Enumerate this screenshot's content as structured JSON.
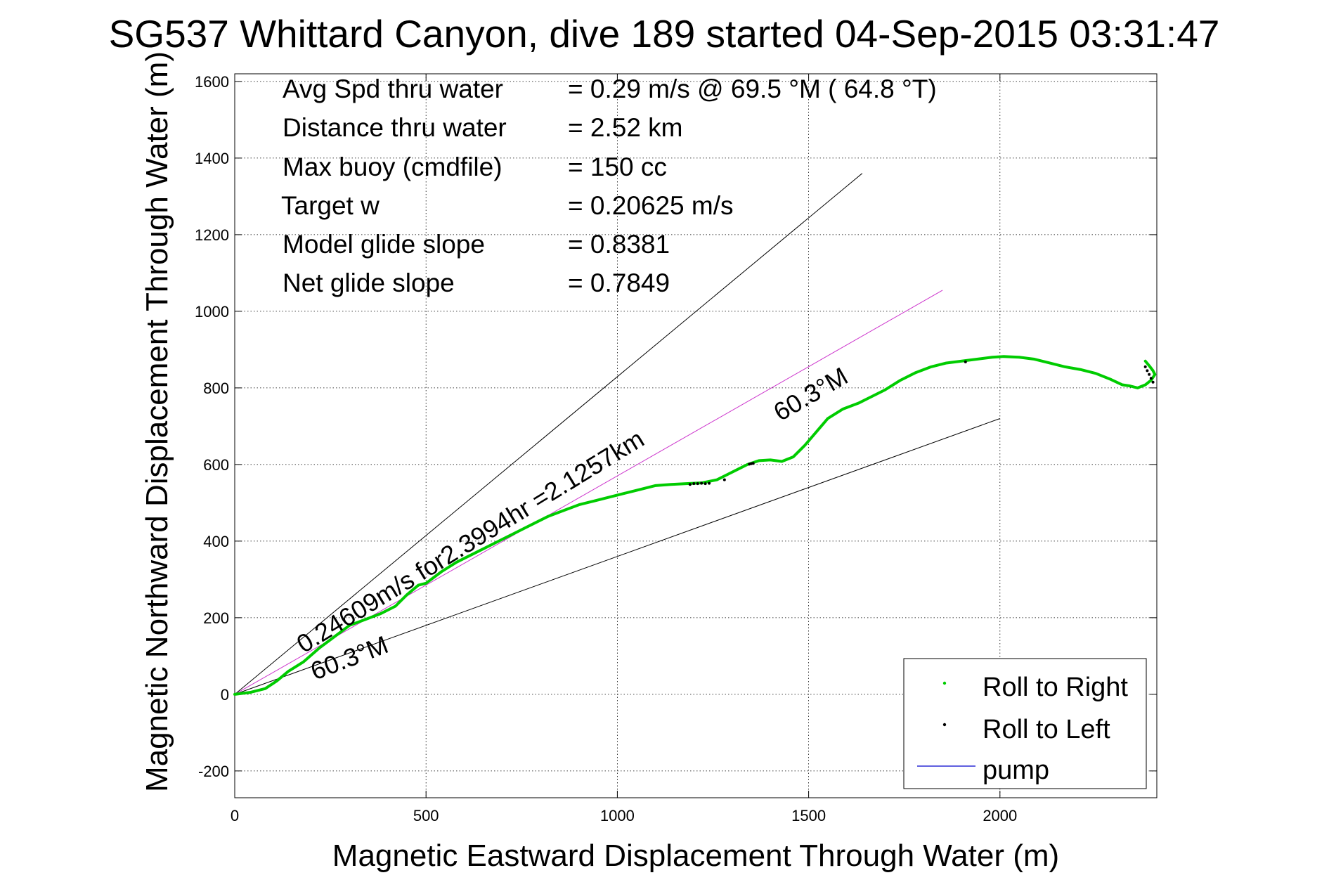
{
  "chart_data": {
    "type": "line",
    "title": "SG537 Whittard Canyon, dive 189 started 04-Sep-2015 03:31:47",
    "xlabel": "Magnetic Eastward Displacement Through Water (m)",
    "ylabel": "Magnetic Northward Displacement Through Water (m)",
    "xlim": [
      0,
      2410
    ],
    "ylim": [
      -270,
      1620
    ],
    "x_ticks": [
      0,
      500,
      1000,
      1500,
      2000
    ],
    "y_ticks": [
      -200,
      0,
      200,
      400,
      600,
      800,
      1000,
      1200,
      1400,
      1600
    ],
    "x_tick_labels": [
      "0",
      "500",
      "1000",
      "1500",
      "2000"
    ],
    "y_tick_labels": [
      "-200",
      "0",
      "200",
      "400",
      "600",
      "800",
      "1000",
      "1200",
      "1400",
      "1600"
    ],
    "grid": true,
    "legend_position": "bottom-right",
    "stats": [
      {
        "label": "Avg Spd thru water",
        "value": "=  0.29 m/s @  69.5 °M ( 64.8 °T)"
      },
      {
        "label": "Distance thru water",
        "value": "=  2.52 km"
      },
      {
        "label": "Max buoy (cmdfile)",
        "value": "= 150 cc"
      },
      {
        "label": "Target w",
        "value": "= 0.20625 m/s"
      },
      {
        "label": "Model glide slope",
        "value": "= 0.8381"
      },
      {
        "label": "Net glide slope",
        "value": "= 0.7849"
      }
    ],
    "annotations": {
      "speed_text": "0.24609m/s for2.3994hr =2.1257km",
      "heading_lower": "60.3°M",
      "heading_upper": "60.3°M"
    },
    "reference_lines": [
      {
        "style": "black",
        "x": [
          0,
          1640
        ],
        "y": [
          0,
          1360
        ]
      },
      {
        "style": "black",
        "x": [
          0,
          2000
        ],
        "y": [
          0,
          720
        ]
      },
      {
        "style": "magenta",
        "x": [
          0,
          1850
        ],
        "y": [
          0,
          1055
        ]
      }
    ],
    "series": [
      {
        "name": "Roll to Right",
        "color": "#00cc00",
        "x": [
          0,
          40,
          80,
          110,
          140,
          180,
          220,
          260,
          300,
          340,
          380,
          420,
          450,
          480,
          500,
          540,
          580,
          620,
          660,
          700,
          740,
          780,
          820,
          860,
          900,
          940,
          980,
          1020,
          1060,
          1100,
          1140,
          1180,
          1220,
          1260,
          1290,
          1320,
          1340,
          1370,
          1400,
          1430,
          1460,
          1490,
          1520,
          1550,
          1590,
          1630,
          1660,
          1700,
          1740,
          1780,
          1820,
          1860,
          1900,
          1940,
          1980,
          2010,
          2050,
          2090,
          2130,
          2170,
          2210,
          2250,
          2290,
          2320,
          2340,
          2360,
          2380,
          2395,
          2405,
          2400,
          2390,
          2380
        ],
        "y": [
          0,
          5,
          15,
          35,
          60,
          85,
          120,
          150,
          180,
          195,
          210,
          230,
          260,
          285,
          290,
          320,
          345,
          365,
          385,
          405,
          425,
          445,
          465,
          480,
          495,
          505,
          515,
          525,
          535,
          545,
          548,
          550,
          552,
          560,
          575,
          590,
          600,
          610,
          612,
          608,
          620,
          650,
          685,
          720,
          745,
          760,
          775,
          795,
          820,
          840,
          855,
          865,
          870,
          875,
          880,
          882,
          880,
          875,
          865,
          855,
          848,
          838,
          822,
          808,
          805,
          800,
          808,
          820,
          835,
          845,
          858,
          870
        ]
      },
      {
        "name": "Roll to Left",
        "color": "#000000",
        "x": [
          1190,
          1200,
          1210,
          1220,
          1230,
          1240,
          1280,
          1345,
          1350,
          1355,
          1910,
          2380,
          2385,
          2390,
          2395,
          2400
        ],
        "y": [
          548,
          550,
          550,
          551,
          550,
          551,
          560,
          601,
          602,
          603,
          868,
          855,
          845,
          835,
          825,
          815
        ]
      },
      {
        "name": "pump",
        "color": "#0000cc",
        "x": [],
        "y": []
      }
    ]
  }
}
